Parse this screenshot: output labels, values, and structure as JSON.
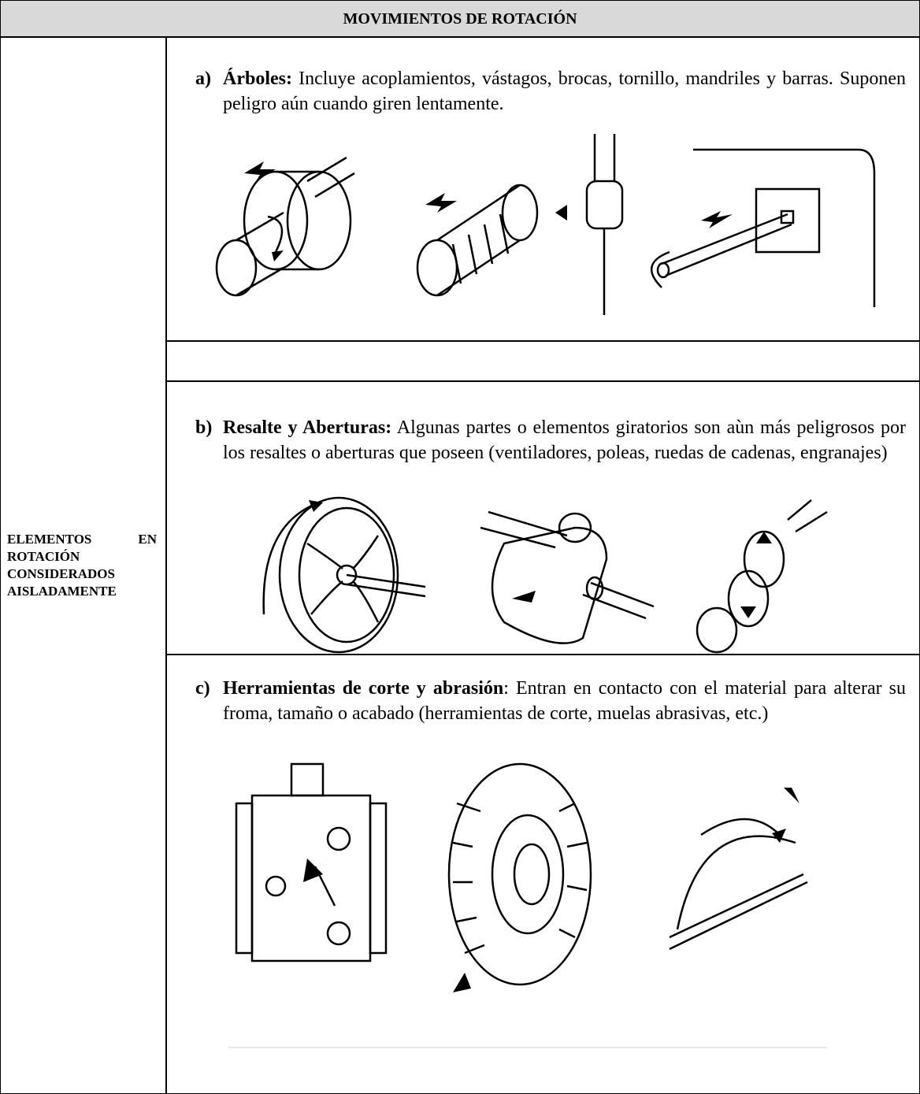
{
  "header": {
    "title": "MOVIMIENTOS DE ROTACIÓN"
  },
  "row_label": "ELEMENTOS EN ROTACIÓN CONSIDERADOS AISLADAMENTE",
  "items": [
    {
      "marker": "a)",
      "term": "Árboles:",
      "text": "Incluye acoplamientos, vástagos, brocas, tornillo, mandriles y barras. Suponen peligro aún cuando giren lentamente."
    },
    {
      "marker": "b)",
      "term": "Resalte y Aberturas:",
      "text": "Algunas partes o elementos giratorios son aùn más peligrosos por los resaltes o aberturas que poseen (ventiladores, poleas, ruedas de cadenas, engranajes)"
    },
    {
      "marker": "c)",
      "term": "Herramientas de corte y abrasión",
      "text": ": Entran en contacto con el material para alterar su froma, tamaño o acabado (herramientas de corte, muelas abrasivas, etc.)"
    }
  ]
}
